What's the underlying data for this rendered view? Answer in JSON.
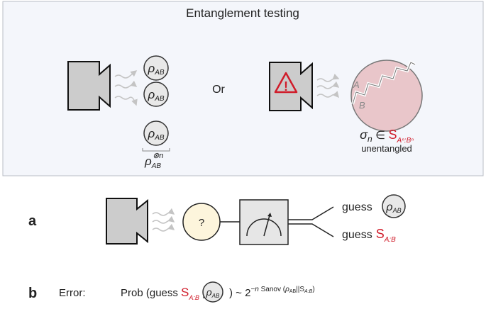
{
  "panel": {
    "title": "Entanglement testing",
    "rho": "ρ",
    "rho_sub": "AB",
    "tensor_sup": "⊗n",
    "or_label": "Or",
    "region_a": "A",
    "region_b": "B",
    "sigma": "σ",
    "sigma_sub": "n",
    "element_of": " ∈ ",
    "set_s": "S",
    "set_sub": "Aⁿ:Bⁿ",
    "unentangled": "unentangled"
  },
  "part_a": {
    "label": "a",
    "unknown": "?",
    "guess": "guess",
    "set_s": "S",
    "set_sub": "A:B"
  },
  "part_b": {
    "label": "b",
    "error": "Error:",
    "prob": "Prob (guess ",
    "set_s": "S",
    "set_sub": "A:B",
    "bar": " |",
    "close": ") ~ 2",
    "exponent": "−n",
    "sanov": " Sanov (",
    "sanov_rho_sub": "AB",
    "sanov_sep": "||S",
    "sanov_sub": "A:B",
    "sanov_close": ")"
  },
  "colors": {
    "accent_red": "#d01c2a",
    "panel_bg": "#f4f6fb",
    "pink": "#e9c6ca",
    "device_gray": "#cccccc"
  }
}
